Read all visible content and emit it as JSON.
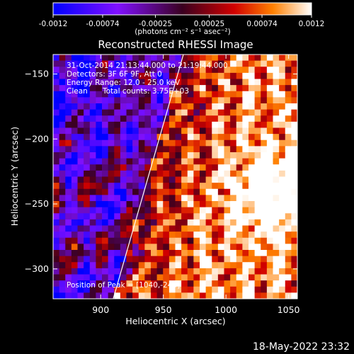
{
  "chart_data": {
    "type": "heatmap",
    "title": "Reconstructed RHESSI Image",
    "xlabel": "Heliocentric X (arcsec)",
    "ylabel": "Heliocentric Y (arcsec)",
    "xlim": [
      862,
      1057
    ],
    "ylim": [
      -323,
      -135
    ],
    "x_ticks": [
      900,
      950,
      1000,
      1050
    ],
    "y_ticks": [
      -150,
      -200,
      -250,
      -300
    ],
    "colorbar": {
      "range": [
        -0.0012,
        0.0012
      ],
      "ticks": [
        "-0.0012",
        "-0.00074",
        "-0.00025",
        "0.00025",
        "0.00074",
        "0.0012"
      ],
      "unit_label": "(photons cm⁻² s⁻¹ asec⁻²)"
    },
    "grid": false,
    "limb_line": {
      "x": [
        910,
        966
      ],
      "y": [
        -323,
        -135
      ]
    },
    "annotations": {
      "time_range": "31-Oct-2014 21:13:44.000 to 21:19:44.000",
      "detectors": "Detectors: 3F 6F 9F, Att 0",
      "energy_range": "Energy Range: 12.0 - 25.0 keV",
      "method": "Clean",
      "total_counts": "Total counts: 3.75E+03",
      "peak_position": "Position of Peak = [1040,-243]"
    },
    "footer_timestamp": "18-May-2022 23:32",
    "peak": {
      "x": 1040,
      "y": -243
    }
  }
}
